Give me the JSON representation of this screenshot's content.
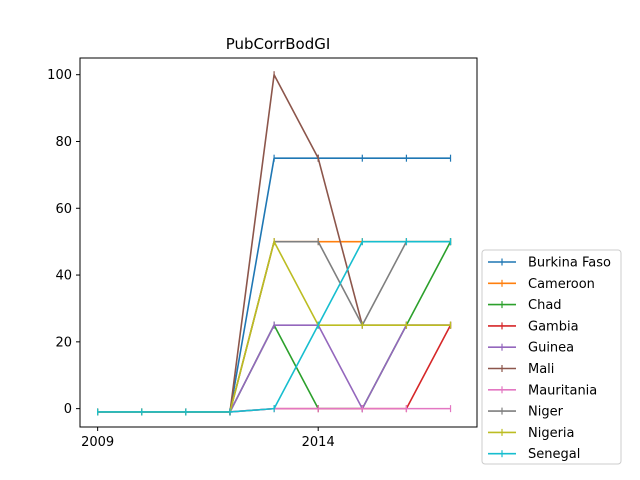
{
  "chart_data": {
    "type": "line",
    "title": "PubCorrBodGI",
    "xlabel": "",
    "ylabel": "",
    "x": [
      2009,
      2010,
      2011,
      2012,
      2013,
      2014,
      2015,
      2016,
      2017
    ],
    "x_tick_values": [
      2009,
      2014
    ],
    "x_tick_labels": [
      "2009",
      "2014"
    ],
    "xlim": [
      2008.6,
      2017.6
    ],
    "ylim": [
      -5.5,
      105
    ],
    "y_tick_values": [
      0,
      20,
      40,
      60,
      80,
      100
    ],
    "y_tick_labels": [
      "0",
      "20",
      "40",
      "60",
      "80",
      "100"
    ],
    "grid": false,
    "legend_position": "lower right, outside plot",
    "marker": "vertical tick",
    "series": [
      {
        "name": "Burkina Faso",
        "color": "#1f77b4",
        "values": [
          -1,
          -1,
          -1,
          -1,
          75,
          75,
          75,
          75,
          75
        ]
      },
      {
        "name": "Cameroon",
        "color": "#ff7f0e",
        "values": [
          -1,
          -1,
          -1,
          -1,
          50,
          50,
          50,
          50,
          50
        ]
      },
      {
        "name": "Chad",
        "color": "#2ca02c",
        "values": [
          -1,
          -1,
          -1,
          -1,
          25,
          0,
          0,
          25,
          50
        ]
      },
      {
        "name": "Gambia",
        "color": "#d62728",
        "values": [
          -1,
          -1,
          -1,
          -1,
          0,
          0,
          0,
          0,
          25
        ]
      },
      {
        "name": "Guinea",
        "color": "#9467bd",
        "values": [
          -1,
          -1,
          -1,
          -1,
          25,
          25,
          0,
          25,
          25
        ]
      },
      {
        "name": "Mali",
        "color": "#8c564b",
        "values": [
          -1,
          -1,
          -1,
          -1,
          100,
          75,
          25,
          25,
          25
        ]
      },
      {
        "name": "Mauritania",
        "color": "#e377c2",
        "values": [
          -1,
          -1,
          -1,
          -1,
          0,
          0,
          0,
          0,
          0
        ]
      },
      {
        "name": "Niger",
        "color": "#7f7f7f",
        "values": [
          -1,
          -1,
          -1,
          -1,
          50,
          50,
          25,
          50,
          50
        ]
      },
      {
        "name": "Nigeria",
        "color": "#bcbd22",
        "values": [
          -1,
          -1,
          -1,
          -1,
          50,
          25,
          25,
          25,
          25
        ]
      },
      {
        "name": "Senegal",
        "color": "#17becf",
        "values": [
          -1,
          -1,
          -1,
          -1,
          0,
          25,
          50,
          50,
          50
        ]
      }
    ]
  }
}
